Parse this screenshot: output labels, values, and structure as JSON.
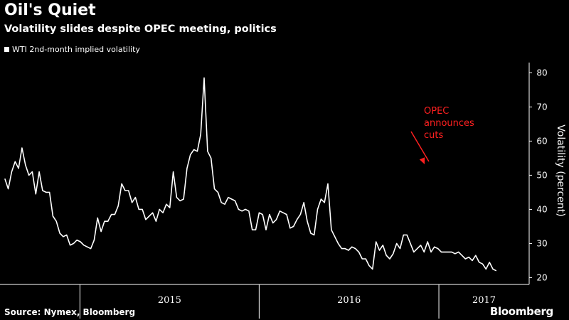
{
  "chart_data": {
    "type": "line",
    "title": "Oil's Quiet",
    "subtitle": "Volatility slides despite OPEC meeting, politics",
    "xlabel": "",
    "ylabel": "Volatility (percent)",
    "ylim": [
      18,
      83
    ],
    "yticks": [
      "20",
      "30",
      "40",
      "50",
      "60",
      "70",
      "80"
    ],
    "xticks": [
      "2015",
      "2016",
      "2017"
    ],
    "grid": false,
    "legend_position": "top-left",
    "series": [
      {
        "name": "WTI 2nd-month implied volatility",
        "color": "#ffffff",
        "x_start": "2014-08-01",
        "interval": "weekly",
        "values": [
          49,
          46,
          51,
          54,
          52,
          58,
          53,
          50,
          51,
          44.5,
          51,
          45.5,
          45,
          45,
          38,
          36.5,
          33,
          32,
          32.5,
          29.5,
          30,
          31,
          30.5,
          29.5,
          29,
          28.5,
          31,
          37.5,
          33.5,
          36.5,
          36.5,
          38.5,
          38.5,
          41,
          47.5,
          45.5,
          45.5,
          42,
          43.5,
          40,
          40,
          37,
          38,
          39,
          36.5,
          40,
          39,
          41.5,
          40.5,
          51,
          43.5,
          42.5,
          43,
          52,
          56,
          57.5,
          57,
          62,
          78.5,
          57,
          55,
          46,
          45,
          42,
          41.5,
          43.5,
          43,
          42.5,
          40,
          39.5,
          40,
          39.5,
          34,
          34,
          39,
          38.5,
          34,
          38.5,
          36,
          37,
          39.5,
          39,
          38.5,
          34.5,
          35,
          37,
          38.5,
          42,
          36.5,
          33,
          32.5,
          40,
          43,
          42,
          47.5,
          34,
          32,
          30,
          28.5,
          28.5,
          28,
          29,
          28.5,
          27.5,
          25.5,
          25.5,
          23.5,
          22.5,
          30.5,
          28,
          29.5,
          26.5,
          25.5,
          27,
          30,
          28.5,
          32.5,
          32.5,
          30,
          27.5,
          28.5,
          29.5,
          27.5,
          30.5,
          27.5,
          29,
          28.5,
          27.5,
          27.5,
          27.5,
          27.5,
          27,
          27.5,
          26.5,
          25.5,
          26,
          25,
          26.5,
          24.5,
          24,
          22.5,
          24.5,
          22.5,
          22
        ]
      }
    ],
    "annotations": [
      {
        "text": [
          "OPEC",
          "announces",
          "cuts"
        ],
        "color": "#ff2020",
        "arrow_to": "2016-11-30"
      }
    ]
  },
  "footer": {
    "source": "Source: Nymex, Bloomberg",
    "brand": "Bloomberg"
  }
}
